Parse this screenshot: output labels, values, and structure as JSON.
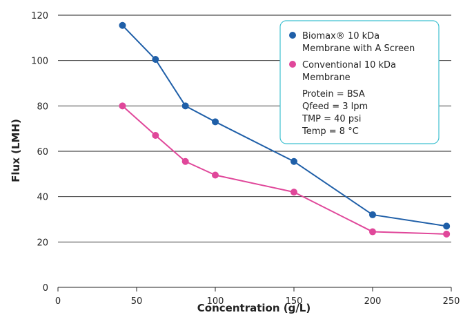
{
  "chart_data": {
    "type": "line",
    "xlabel": "Concentration (g/L)",
    "ylabel": "Flux (LMH)",
    "xlim": [
      0,
      250
    ],
    "ylim": [
      0,
      120
    ],
    "x_ticks": [
      0,
      50,
      100,
      150,
      200,
      250
    ],
    "y_ticks": [
      0,
      20,
      40,
      60,
      80,
      100,
      120
    ],
    "grid": "horizontal",
    "legend_position": "top-right",
    "series": [
      {
        "name_line1": "Biomax® 10 kDa",
        "name_line2": "Membrane with A Screen",
        "color": "#1f5fa8",
        "x": [
          41,
          62,
          81,
          100,
          150,
          200,
          247
        ],
        "y": [
          115.5,
          100.5,
          80,
          73,
          55.5,
          32,
          27
        ]
      },
      {
        "name_line1": "Conventional 10 kDa",
        "name_line2": "Membrane",
        "color": "#e0479a",
        "x": [
          41,
          62,
          81,
          100,
          150,
          200,
          247
        ],
        "y": [
          80,
          67,
          55.5,
          49.5,
          42,
          24.5,
          23.5
        ]
      }
    ],
    "annotations": [
      "Protein = BSA",
      "Qfeed = 3 lpm",
      "TMP = 40 psi",
      "Temp = 8 °C"
    ],
    "legend_border_color": "#3fc0d0"
  }
}
